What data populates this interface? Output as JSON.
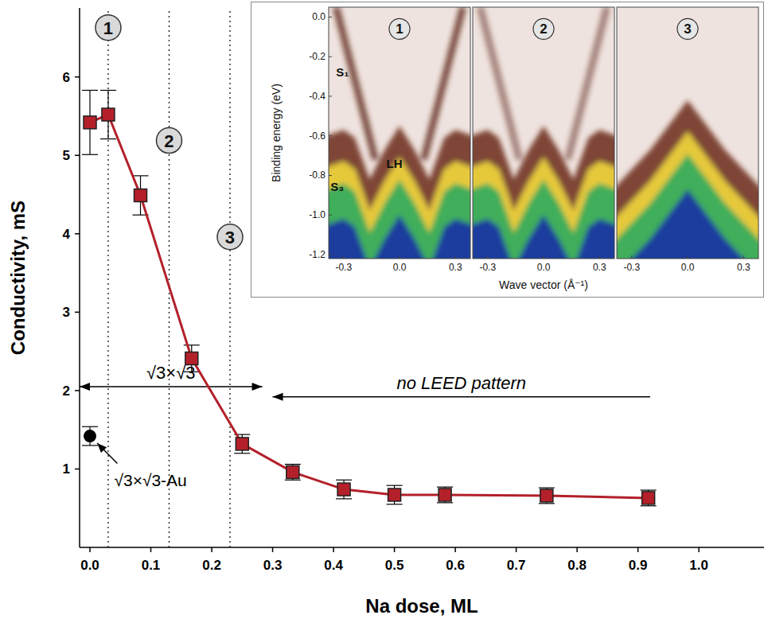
{
  "chart_data": {
    "type": "scatter",
    "xlabel": "Na dose, ML",
    "ylabel": "Conductivity, mS",
    "xlim": [
      -0.017,
      1.107
    ],
    "xticks": [
      {
        "value": 0,
        "label": "0.0"
      },
      {
        "value": 0.1,
        "label": "0.1"
      },
      {
        "value": 0.2,
        "label": "0.2"
      },
      {
        "value": 0.3,
        "label": "0.3"
      },
      {
        "value": 0.4,
        "label": "0.4"
      },
      {
        "value": 0.5,
        "label": "0.5"
      },
      {
        "value": 0.6,
        "label": "0.6"
      },
      {
        "value": 0.7,
        "label": "0.7"
      },
      {
        "value": 0.8,
        "label": "0.8"
      },
      {
        "value": 0.9,
        "label": "0.9"
      },
      {
        "value": 1,
        "label": "1.0"
      }
    ],
    "ylim": [
      0,
      6.88
    ],
    "yticks": [
      1,
      2,
      3,
      4,
      5,
      6
    ],
    "series": [
      {
        "color": "#b3202a",
        "marker": "square",
        "line_style": "solid",
        "x": [
          0,
          0.03,
          0.083,
          0.167,
          0.25,
          0.333,
          0.417,
          0.5,
          0.583,
          0.75,
          0.917
        ],
        "values": [
          5.42,
          5.52,
          4.49,
          2.41,
          1.32,
          0.96,
          0.74,
          0.67,
          0.67,
          0.66,
          0.63
        ],
        "errors": [
          0.41,
          0.31,
          0.25,
          0.17,
          0.12,
          0.1,
          0.12,
          0.12,
          0.1,
          0.1,
          0.1
        ]
      },
      {
        "name": "√3×√3-Au",
        "color": "#000000",
        "marker": "circle",
        "x": [
          0
        ],
        "values": [
          1.42
        ],
        "errors": [
          0.12
        ]
      }
    ],
    "markers": [
      {
        "x": 0.03,
        "y": 6.63,
        "label": "1"
      },
      {
        "x": 0.13,
        "y": 5.19,
        "label": "2"
      },
      {
        "x": 0.23,
        "y": 3.96,
        "label": "3"
      }
    ],
    "annotations": [
      {
        "text": "√3×√3",
        "x": [
          -0.017,
          0.283
        ],
        "y": 2.05
      },
      {
        "text": "no LEED pattern",
        "x": [
          0.3,
          0.92
        ],
        "y": 1.92
      }
    ],
    "inset": {
      "panels": [
        "1",
        "2",
        "3"
      ],
      "xlabel": "Wave vector (Å⁻¹)",
      "ylabel": "Binding energy (eV)",
      "xlim": [
        -0.38,
        0.38
      ],
      "xticks": [
        {
          "value": -0.3,
          "label": "-0.3"
        },
        {
          "value": 0,
          "label": "0.0"
        },
        {
          "value": 0.3,
          "label": "0.3"
        }
      ],
      "ylim": [
        -1.22,
        0.05
      ],
      "yticks": [
        {
          "value": 0,
          "label": "0.0"
        },
        {
          "value": -0.2,
          "label": "-0.2"
        },
        {
          "value": -0.4,
          "label": "-0.4"
        },
        {
          "value": -0.6,
          "label": "-0.6"
        },
        {
          "value": -0.8,
          "label": "-0.8"
        },
        {
          "value": -1,
          "label": "-1.0"
        },
        {
          "value": -1.2,
          "label": "-1.2"
        }
      ],
      "band_labels": [
        "S₁",
        "S₃",
        "LH"
      ]
    }
  }
}
